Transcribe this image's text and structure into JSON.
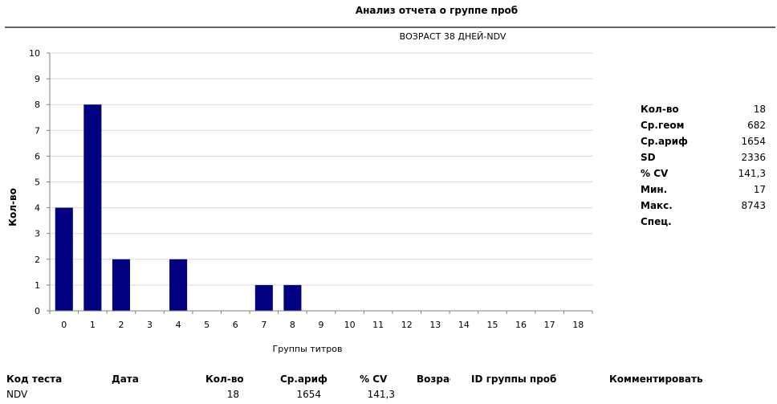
{
  "report": {
    "title": "Анализ отчета о группе проб"
  },
  "chart_data": {
    "type": "bar",
    "title": "ВОЗРАСТ 38 ДНЕЙ-NDV",
    "xlabel": "Группы титров",
    "ylabel": "Кол-во",
    "categories": [
      "0",
      "1",
      "2",
      "3",
      "4",
      "5",
      "6",
      "7",
      "8",
      "9",
      "10",
      "11",
      "12",
      "13",
      "14",
      "15",
      "16",
      "17",
      "18"
    ],
    "values": [
      4,
      8,
      2,
      0,
      2,
      0,
      0,
      1,
      1,
      0,
      0,
      0,
      0,
      0,
      0,
      0,
      0,
      0,
      0
    ],
    "ylim": [
      0,
      10
    ],
    "yticks": [
      "0",
      "1",
      "2",
      "3",
      "4",
      "5",
      "6",
      "7",
      "8",
      "9",
      "10"
    ],
    "grid": true,
    "bar_color": "#000080"
  },
  "stats": [
    {
      "label": "Кол-во",
      "value": "18"
    },
    {
      "label": "Ср.геом",
      "value": "682"
    },
    {
      "label": "Ср.ариф",
      "value": "1654"
    },
    {
      "label": "SD",
      "value": "2336"
    },
    {
      "label": "% CV",
      "value": "141,3"
    },
    {
      "label": "Мин.",
      "value": "17"
    },
    {
      "label": "Макс.",
      "value": "8743"
    },
    {
      "label": "Спец.",
      "value": ""
    }
  ],
  "summary": {
    "headers": [
      "Код теста",
      "Дата",
      "Кол-во",
      "Ср.ариф",
      "% CV",
      "Возраст",
      "ID группы проб",
      "Комментировать"
    ],
    "row": [
      "NDV",
      "",
      "18",
      "1654",
      "141,3",
      "",
      "",
      ""
    ]
  }
}
